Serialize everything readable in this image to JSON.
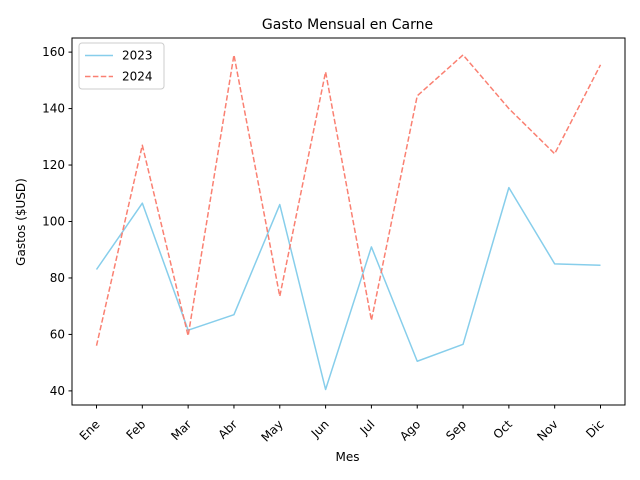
{
  "chart_data": {
    "type": "line",
    "title": "Gasto Mensual en Carne",
    "xlabel": "Mes",
    "ylabel": "Gastos ($USD)",
    "categories": [
      "Ene",
      "Feb",
      "Mar",
      "Abr",
      "May",
      "Jun",
      "Jul",
      "Ago",
      "Sep",
      "Oct",
      "Nov",
      "Dic"
    ],
    "ylim": [
      35,
      165
    ],
    "yticks": [
      40,
      60,
      80,
      100,
      120,
      140,
      160
    ],
    "grid": false,
    "legend_position": "top-left",
    "series": [
      {
        "name": "2023",
        "color": "#87ceeb",
        "line_style": "solid",
        "values": [
          83,
          106.5,
          61.5,
          67,
          106,
          40.5,
          91,
          50.5,
          56.5,
          112,
          85,
          84.5
        ]
      },
      {
        "name": "2024",
        "color": "#fa8072",
        "line_style": "dashed",
        "values": [
          56,
          127,
          59.5,
          159,
          73.5,
          153,
          65,
          144.5,
          159,
          140,
          124,
          155.5
        ]
      }
    ]
  }
}
